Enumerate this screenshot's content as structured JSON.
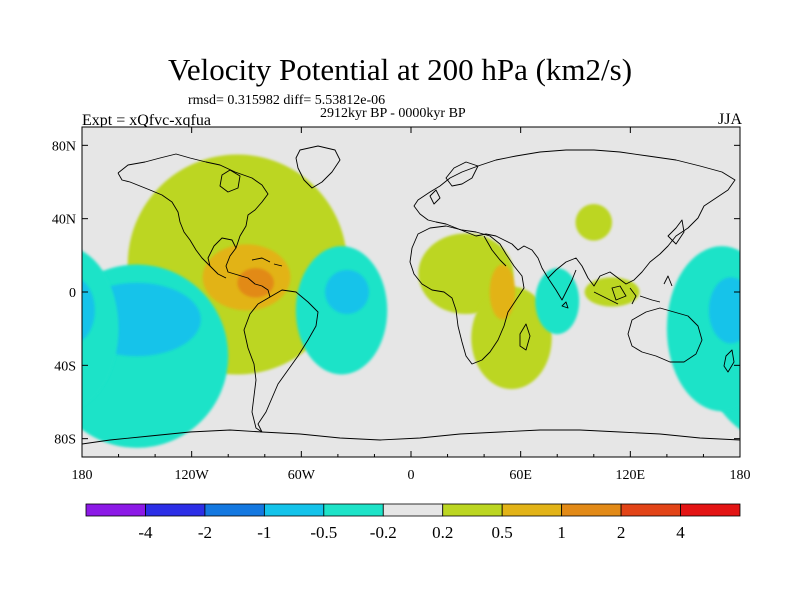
{
  "title": "Velocity Potential at 200 hPa (km2/s)",
  "stats_line": "rmsd= 0.315982 diff= 5.53812e-06",
  "period": "2912kyr BP - 0000kyr BP",
  "experiment": "Expt = xQfvc-xqfua",
  "season": "JJA",
  "map": {
    "lon_range": [
      -180,
      180
    ],
    "lat_range": [
      -90,
      90
    ],
    "lat_ticks": [
      {
        "lat": 80,
        "label": "80N"
      },
      {
        "lat": 40,
        "label": "40N"
      },
      {
        "lat": 0,
        "label": "0"
      },
      {
        "lat": -40,
        "label": "40S"
      },
      {
        "lat": -80,
        "label": "80S"
      }
    ],
    "lon_ticks": [
      {
        "lon": -180,
        "label": "180"
      },
      {
        "lon": -120,
        "label": "120W"
      },
      {
        "lon": -60,
        "label": "60W"
      },
      {
        "lon": 0,
        "label": "0"
      },
      {
        "lon": 60,
        "label": "60E"
      },
      {
        "lon": 120,
        "label": "120E"
      },
      {
        "lon": 180,
        "label": "180"
      }
    ],
    "background_color": "#e6e6e6",
    "regions": [
      {
        "name": "americas-positive",
        "level": "0.2-0.5",
        "color": "#bcd622",
        "lon": -95,
        "lat": 15,
        "rlon": 60,
        "rlat": 60
      },
      {
        "name": "central-america-core",
        "level": "0.5-1",
        "color": "#e2b317",
        "lon": -90,
        "lat": 8,
        "rlon": 24,
        "rlat": 18
      },
      {
        "name": "central-america-max",
        "level": "1-2",
        "color": "#e28a17",
        "lon": -85,
        "lat": 5,
        "rlon": 10,
        "rlat": 8
      },
      {
        "name": "south-atlantic-negative",
        "level": "-0.5--0.2",
        "color": "#1ee3c8",
        "lon": -38,
        "lat": -10,
        "rlon": 25,
        "rlat": 35
      },
      {
        "name": "south-atlantic-core",
        "level": "-1--0.5",
        "color": "#14c3ea",
        "lon": -35,
        "lat": 0,
        "rlon": 12,
        "rlat": 12
      },
      {
        "name": "africa-positive",
        "level": "0.2-0.5",
        "color": "#bcd622",
        "lon": 30,
        "lat": 10,
        "rlon": 26,
        "rlat": 22
      },
      {
        "name": "indian-ocean-positive",
        "level": "0.2-0.5",
        "color": "#bcd622",
        "lon": 55,
        "lat": -25,
        "rlon": 22,
        "rlat": 28
      },
      {
        "name": "east-africa-core",
        "level": "0.5-1",
        "color": "#e2b317",
        "lon": 50,
        "lat": 0,
        "rlon": 7,
        "rlat": 15
      },
      {
        "name": "tibet-positive",
        "level": "0.2-0.5",
        "color": "#bcd622",
        "lon": 100,
        "lat": 38,
        "rlon": 10,
        "rlat": 10
      },
      {
        "name": "maritime-continent-positive",
        "level": "0.2-0.5",
        "color": "#bcd622",
        "lon": 110,
        "lat": 0,
        "rlon": 15,
        "rlat": 8
      },
      {
        "name": "bay-of-bengal-negative",
        "level": "-0.5--0.2",
        "color": "#1ee3c8",
        "lon": 80,
        "lat": -5,
        "rlon": 12,
        "rlat": 18
      },
      {
        "name": "east-pacific-negative",
        "level": "-0.5--0.2",
        "color": "#1ee3c8",
        "lon": -150,
        "lat": -35,
        "rlon": 50,
        "rlat": 50
      },
      {
        "name": "east-pacific-core",
        "level": "-1--0.5",
        "color": "#14c3ea",
        "lon": -150,
        "lat": -15,
        "rlon": 35,
        "rlat": 20
      },
      {
        "name": "west-pacific-negative",
        "level": "-0.5--0.2",
        "color": "#1ee3c8",
        "lon": 170,
        "lat": -20,
        "rlon": 30,
        "rlat": 45
      },
      {
        "name": "west-pacific-core",
        "level": "-1--0.5",
        "color": "#14c3ea",
        "lon": 175,
        "lat": -10,
        "rlon": 12,
        "rlat": 18
      }
    ]
  },
  "colorbar": {
    "colors": [
      "#8c19e6",
      "#2c2ee6",
      "#1478e0",
      "#14c3ea",
      "#1ee3c8",
      "#e6e6e6",
      "#bcd622",
      "#e2b317",
      "#e28a17",
      "#e24417",
      "#e31414"
    ],
    "labels": [
      "-4",
      "-2",
      "-1",
      "-0.5",
      "-0.2",
      "0.2",
      "0.5",
      "1",
      "2",
      "4"
    ]
  }
}
